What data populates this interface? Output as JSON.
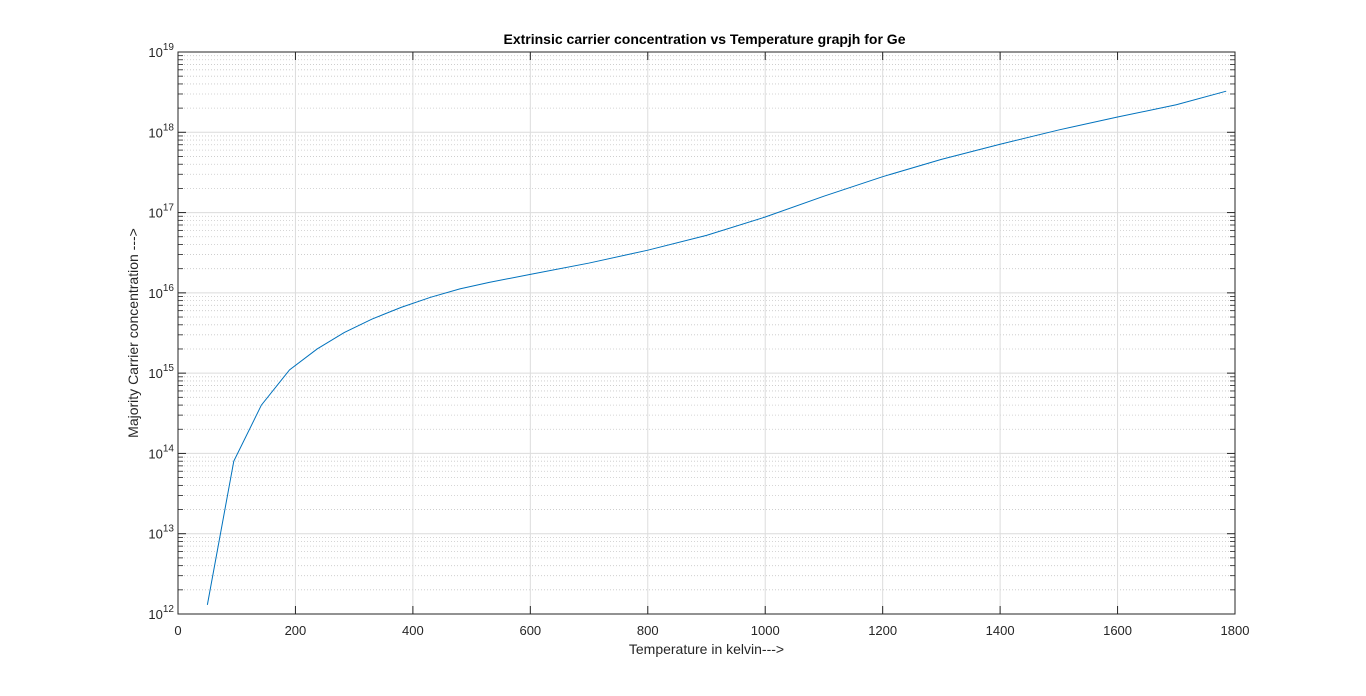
{
  "chart_data": {
    "type": "line",
    "title": "Extrinsic carrier concentration vs Temperature grapjh for Ge",
    "xlabel": "Temperature in kelvin--->",
    "ylabel": "Majority Carrier concentration --->",
    "xlim": [
      0,
      1800
    ],
    "ylim": [
      1000000000000.0,
      1e+19
    ],
    "yscale": "log",
    "grid": true,
    "minor_grid": true,
    "x_ticks": [
      "0",
      "200",
      "400",
      "600",
      "800",
      "1000",
      "1200",
      "1400",
      "1600",
      "1800"
    ],
    "x_tick_values": [
      0,
      200,
      400,
      600,
      800,
      1000,
      1200,
      1400,
      1600,
      1800
    ],
    "y_ticks": [
      {
        "base": "10",
        "exp": "12",
        "value": 1000000000000.0
      },
      {
        "base": "10",
        "exp": "13",
        "value": 10000000000000.0
      },
      {
        "base": "10",
        "exp": "14",
        "value": 100000000000000.0
      },
      {
        "base": "10",
        "exp": "15",
        "value": 1000000000000000.0
      },
      {
        "base": "10",
        "exp": "16",
        "value": 1e+16
      },
      {
        "base": "10",
        "exp": "17",
        "value": 1e+17
      },
      {
        "base": "10",
        "exp": "18",
        "value": 1e+18
      },
      {
        "base": "10",
        "exp": "19",
        "value": 1e+19
      }
    ],
    "series": [
      {
        "color": "#0072bd",
        "x": [
          50,
          95,
          142,
          190,
          237,
          283,
          330,
          380,
          430,
          480,
          530,
          600,
          700,
          800,
          900,
          1000,
          1100,
          1200,
          1300,
          1400,
          1500,
          1600,
          1700,
          1785
        ],
        "y": [
          1300000000000.0,
          80000000000000.0,
          400000000000000.0,
          1100000000000000.0,
          2000000000000000.0,
          3200000000000000.0,
          4700000000000000.0,
          6600000000000000.0,
          8800000000000000.0,
          1.12e+16,
          1.35e+16,
          1.7e+16,
          2.35e+16,
          3.4e+16,
          5.2e+16,
          8.8e+16,
          1.6e+17,
          2.8e+17,
          4.6e+17,
          7.1e+17,
          1.07e+18,
          1.55e+18,
          2.2e+18,
          3.25e+18
        ]
      }
    ]
  }
}
